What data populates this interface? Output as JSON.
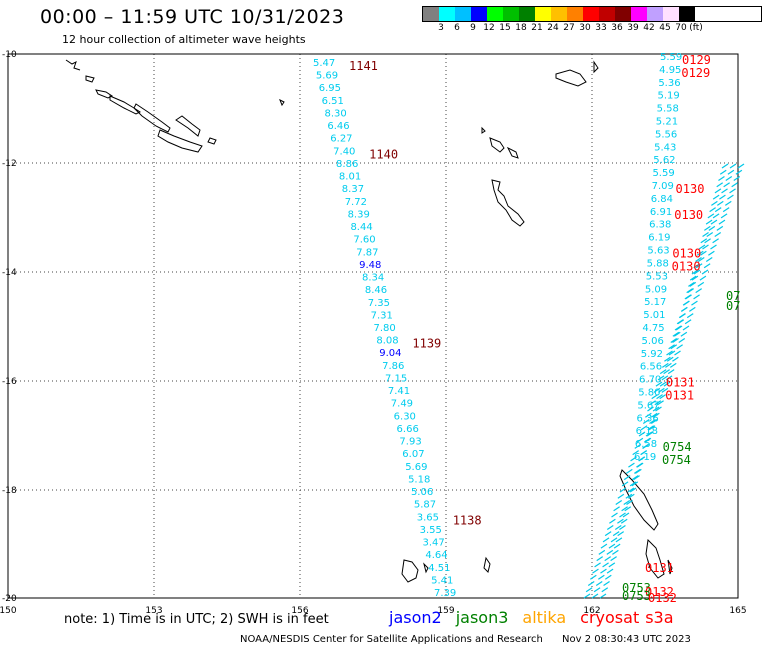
{
  "header": {
    "title": "00:00 – 11:59 UTC 10/31/2023",
    "subtitle": "12 hour collection of altimeter wave heights"
  },
  "legend": {
    "unit": "(ft)",
    "colors": [
      "#808080",
      "#00ffff",
      "#00c0ff",
      "#0000ff",
      "#00ff00",
      "#00c000",
      "#008000",
      "#ffff00",
      "#ffc000",
      "#ff8000",
      "#ff0000",
      "#c00000",
      "#800000",
      "#ff00ff",
      "#c0a0ff",
      "#ffe0ff",
      "#000000"
    ],
    "ticks": [
      "3",
      "6",
      "9",
      "12",
      "15",
      "18",
      "21",
      "24",
      "27",
      "30",
      "33",
      "36",
      "39",
      "42",
      "45",
      "70"
    ]
  },
  "axes": {
    "lon_labels": [
      "150",
      "153",
      "156",
      "159",
      "162",
      "165"
    ],
    "lat_labels": [
      "-10",
      "-12",
      "-14",
      "-16",
      "-18",
      "-20"
    ]
  },
  "satellites": [
    {
      "name": "jason2",
      "color": "#0000ff"
    },
    {
      "name": "jason3",
      "color": "#008000"
    },
    {
      "name": "altika",
      "color": "#ffa500"
    },
    {
      "name": "cryosat",
      "color": "#ff0000"
    },
    {
      "name": "s3a",
      "color": "#ff0000"
    }
  ],
  "track_west": {
    "values": [
      "5.47",
      "5.69",
      "6.95",
      "6.51",
      "8.30",
      "6.46",
      "6.27",
      "7.40",
      "8.86",
      "8.01",
      "8.37",
      "7.72",
      "8.39",
      "8.44",
      "7.60",
      "7.87",
      "9.48",
      "8.34",
      "8.46",
      "7.35",
      "7.31",
      "7.80",
      "8.08",
      "9.04",
      "7.86",
      "7.15",
      "7.41",
      "7.49",
      "6.30",
      "6.66",
      "7.93",
      "6.07",
      "5.69",
      "5.18",
      "5.06",
      "5.87",
      "3.65",
      "3.55",
      "3.47",
      "4.64",
      "4.51",
      "5.41",
      "7.39"
    ],
    "times": [
      {
        "label": "1141",
        "after": 0
      },
      {
        "label": "1140",
        "after": 7
      },
      {
        "label": "1139",
        "after": 22
      },
      {
        "label": "1138",
        "after": 36
      }
    ]
  },
  "track_east": {
    "values": [
      "5.59",
      "4.95",
      "5.36",
      "5.19",
      "5.58",
      "5.21",
      "5.56",
      "5.43",
      "5.62",
      "5.59",
      "7.09",
      "6.84",
      "6.91",
      "6.38",
      "6.19",
      "5.63",
      "5.88",
      "5.53",
      "5.09",
      "5.17",
      "5.01",
      "4.75",
      "5.06",
      "5.92",
      "6.56",
      "6.70",
      "5.80",
      "5.67",
      "6.36",
      "6.18",
      "6.58",
      "6.19"
    ],
    "times": [
      {
        "label": "0129",
        "idx": 0,
        "color": "#ff0000"
      },
      {
        "label": "0129",
        "idx": 1,
        "color": "#ff0000"
      },
      {
        "label": "0130",
        "idx": 10,
        "color": "#ff0000"
      },
      {
        "label": "0130",
        "idx": 12,
        "color": "#ff0000"
      },
      {
        "label": "0130",
        "idx": 15,
        "color": "#ff0000"
      },
      {
        "label": "0130",
        "idx": 16,
        "color": "#ff0000"
      },
      {
        "label": "0131",
        "idx": 25,
        "color": "#ff0000"
      },
      {
        "label": "0131",
        "idx": 26,
        "color": "#ff0000"
      },
      {
        "label": "0754",
        "idx": 30,
        "color": "#008000"
      },
      {
        "label": "0754",
        "idx": 31,
        "color": "#008000"
      }
    ]
  },
  "bottom_labels": [
    {
      "label": "0131",
      "color": "#ff0000"
    },
    {
      "label": "0753",
      "color": "#008000"
    },
    {
      "label": "0132",
      "color": "#ff0000"
    },
    {
      "label": "0753",
      "color": "#008000"
    },
    {
      "label": "0132",
      "color": "#ff0000"
    }
  ],
  "edge_labels": [
    {
      "label": "07",
      "color": "#008000"
    },
    {
      "label": "07",
      "color": "#008000"
    }
  ],
  "note": "note: 1) Time is in UTC; 2) SWH is in feet",
  "footer": {
    "left": "NOAA/NESDIS Center for Satellite Applications and Research",
    "right": "Nov  2 08:30:43 UTC 2023"
  }
}
